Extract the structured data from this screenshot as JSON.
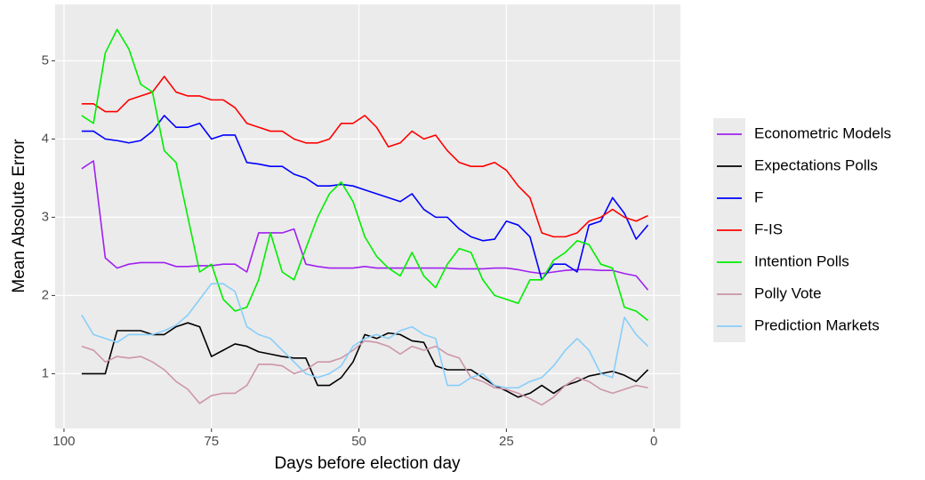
{
  "chart_data": {
    "type": "line",
    "x_label": "Days before election day",
    "y_label": "Mean Absolute Error",
    "x": [
      97,
      95,
      93,
      91,
      89,
      87,
      85,
      83,
      81,
      79,
      77,
      75,
      73,
      71,
      69,
      67,
      65,
      63,
      61,
      59,
      57,
      55,
      53,
      51,
      49,
      47,
      45,
      43,
      41,
      39,
      37,
      35,
      33,
      31,
      29,
      27,
      25,
      23,
      21,
      19,
      17,
      15,
      13,
      11,
      9,
      7,
      5,
      3,
      1
    ],
    "xlim": [
      101.5,
      -4.5
    ],
    "xticks": [
      100,
      75,
      50,
      25,
      0
    ],
    "ylim": [
      0.3,
      5.72
    ],
    "yticks": [
      1,
      2,
      3,
      4,
      5
    ],
    "grid": true,
    "legend": "right",
    "series": [
      {
        "name": "Econometric Models",
        "color": "#a020f0",
        "values": [
          3.62,
          3.72,
          2.48,
          2.35,
          2.4,
          2.42,
          2.42,
          2.42,
          2.37,
          2.37,
          2.38,
          2.38,
          2.4,
          2.4,
          2.3,
          2.8,
          2.8,
          2.8,
          2.85,
          2.4,
          2.37,
          2.35,
          2.35,
          2.35,
          2.37,
          2.35,
          2.35,
          2.35,
          2.35,
          2.35,
          2.35,
          2.35,
          2.34,
          2.34,
          2.34,
          2.35,
          2.35,
          2.33,
          2.3,
          2.28,
          2.3,
          2.32,
          2.33,
          2.33,
          2.32,
          2.32,
          2.28,
          2.25,
          2.07
        ]
      },
      {
        "name": "Expectations Polls",
        "color": "#000000",
        "values": [
          1.0,
          1.0,
          1.0,
          1.55,
          1.55,
          1.55,
          1.5,
          1.5,
          1.6,
          1.65,
          1.6,
          1.22,
          1.3,
          1.38,
          1.35,
          1.28,
          1.25,
          1.22,
          1.2,
          1.2,
          0.85,
          0.85,
          0.95,
          1.15,
          1.5,
          1.45,
          1.52,
          1.5,
          1.42,
          1.4,
          1.1,
          1.05,
          1.05,
          1.05,
          0.95,
          0.85,
          0.78,
          0.7,
          0.75,
          0.85,
          0.75,
          0.85,
          0.9,
          0.97,
          1.0,
          1.03,
          0.98,
          0.9,
          1.05
        ]
      },
      {
        "name": "F",
        "color": "#0000ff",
        "values": [
          4.1,
          4.1,
          4.0,
          3.98,
          3.95,
          3.98,
          4.1,
          4.3,
          4.15,
          4.15,
          4.2,
          4.0,
          4.05,
          4.05,
          3.7,
          3.68,
          3.65,
          3.65,
          3.55,
          3.5,
          3.4,
          3.4,
          3.42,
          3.4,
          3.35,
          3.3,
          3.25,
          3.2,
          3.3,
          3.1,
          3.0,
          3.0,
          2.85,
          2.75,
          2.7,
          2.72,
          2.95,
          2.9,
          2.75,
          2.2,
          2.4,
          2.4,
          2.3,
          2.9,
          2.95,
          3.25,
          3.05,
          2.72,
          2.9
        ]
      },
      {
        "name": "F-IS",
        "color": "#ff0000",
        "values": [
          4.45,
          4.45,
          4.35,
          4.35,
          4.5,
          4.55,
          4.6,
          4.8,
          4.6,
          4.55,
          4.55,
          4.5,
          4.5,
          4.4,
          4.2,
          4.15,
          4.1,
          4.1,
          4.0,
          3.95,
          3.95,
          4.0,
          4.2,
          4.2,
          4.3,
          4.15,
          3.9,
          3.95,
          4.1,
          4.0,
          4.05,
          3.85,
          3.7,
          3.65,
          3.65,
          3.7,
          3.6,
          3.4,
          3.25,
          2.8,
          2.75,
          2.75,
          2.8,
          2.95,
          3.0,
          3.1,
          3.0,
          2.95,
          3.02
        ]
      },
      {
        "name": "Intention Polls",
        "color": "#00ee00",
        "values": [
          4.3,
          4.2,
          5.1,
          5.4,
          5.15,
          4.7,
          4.6,
          3.85,
          3.7,
          3.0,
          2.3,
          2.4,
          1.95,
          1.8,
          1.85,
          2.2,
          2.8,
          2.3,
          2.2,
          2.6,
          3.0,
          3.3,
          3.45,
          3.2,
          2.75,
          2.5,
          2.35,
          2.25,
          2.55,
          2.25,
          2.1,
          2.4,
          2.6,
          2.55,
          2.2,
          2.0,
          1.95,
          1.9,
          2.2,
          2.2,
          2.45,
          2.55,
          2.7,
          2.65,
          2.4,
          2.35,
          1.85,
          1.8,
          1.68
        ]
      },
      {
        "name": "Polly Vote",
        "color": "#cd96a8",
        "values": [
          1.35,
          1.3,
          1.15,
          1.22,
          1.2,
          1.22,
          1.15,
          1.05,
          0.9,
          0.8,
          0.62,
          0.72,
          0.75,
          0.75,
          0.85,
          1.12,
          1.12,
          1.1,
          1.0,
          1.05,
          1.15,
          1.15,
          1.2,
          1.3,
          1.42,
          1.4,
          1.35,
          1.25,
          1.35,
          1.3,
          1.35,
          1.25,
          1.2,
          0.95,
          0.9,
          0.82,
          0.8,
          0.75,
          0.68,
          0.6,
          0.7,
          0.85,
          0.95,
          0.9,
          0.8,
          0.75,
          0.8,
          0.85,
          0.82
        ]
      },
      {
        "name": "Prediction Markets",
        "color": "#87cefa",
        "values": [
          1.75,
          1.5,
          1.45,
          1.4,
          1.5,
          1.5,
          1.5,
          1.55,
          1.62,
          1.75,
          1.95,
          2.15,
          2.15,
          2.05,
          1.6,
          1.5,
          1.45,
          1.3,
          1.15,
          1.0,
          0.95,
          1.0,
          1.1,
          1.35,
          1.45,
          1.5,
          1.45,
          1.55,
          1.6,
          1.5,
          1.45,
          0.85,
          0.85,
          0.95,
          1.0,
          0.85,
          0.82,
          0.82,
          0.9,
          0.95,
          1.1,
          1.3,
          1.45,
          1.3,
          1.0,
          0.95,
          1.72,
          1.5,
          1.35
        ]
      }
    ]
  }
}
